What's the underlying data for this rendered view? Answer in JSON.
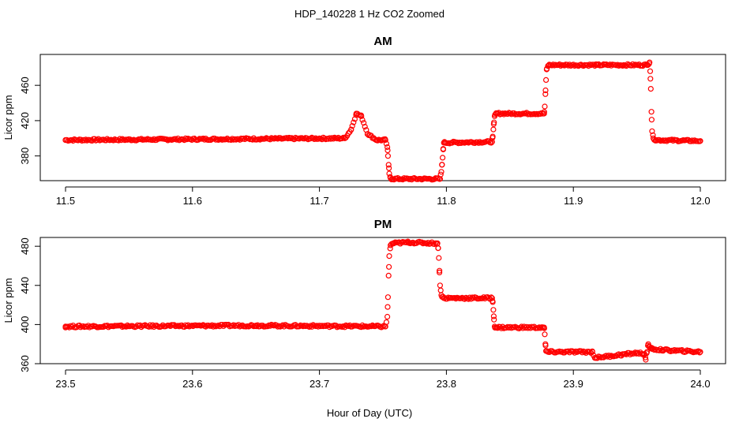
{
  "figure": {
    "title": "HDP_140228  1 Hz CO2 Zoomed",
    "xlabel": "Hour of Day (UTC)",
    "point_color": "#ff0000",
    "marker": "open-circle"
  },
  "chart_data": [
    {
      "type": "scatter",
      "title": "AM",
      "xlabel": "",
      "ylabel": "Licor ppm",
      "xlim": [
        11.5,
        12.0
      ],
      "ylim": [
        352,
        495
      ],
      "xticks": [
        "11.5",
        "11.6",
        "11.7",
        "11.8",
        "11.9",
        "12.0"
      ],
      "xtick_values": [
        11.5,
        11.6,
        11.7,
        11.8,
        11.9,
        12.0
      ],
      "yticks": [
        "380",
        "420",
        "460"
      ],
      "ytick_values": [
        380,
        420,
        460
      ],
      "grid": false,
      "series": [
        {
          "x": [
            11.5,
            11.72,
            11.725,
            11.729,
            11.733,
            11.738,
            11.745,
            11.752,
            11.7535,
            11.754,
            11.7545,
            11.755,
            11.756,
            11.757,
            11.795,
            11.796,
            11.7965,
            11.797,
            11.7975,
            11.798,
            11.799,
            11.836,
            11.8365,
            11.837,
            11.8375,
            11.838,
            11.839,
            11.877,
            11.8775,
            11.878,
            11.8785,
            11.879,
            11.88,
            11.881,
            11.918,
            11.919,
            11.958,
            11.96,
            11.9605,
            11.961,
            11.9615,
            11.962,
            11.963,
            11.965,
            12.0
          ],
          "y": [
            398,
            400,
            410,
            428,
            425,
            405,
            398,
            398,
            390,
            380,
            370,
            360,
            355,
            354,
            354,
            362,
            370,
            378,
            388,
            395,
            395,
            396,
            402,
            410,
            418,
            425,
            428,
            428,
            436,
            450,
            466,
            478,
            482,
            483,
            483,
            483,
            483,
            486,
            476,
            456,
            430,
            408,
            400,
            398,
            397
          ]
        }
      ]
    },
    {
      "type": "scatter",
      "title": "PM",
      "xlabel": "",
      "ylabel": "Licor ppm",
      "xlim": [
        23.5,
        24.0
      ],
      "ylim": [
        360,
        489
      ],
      "xticks": [
        "23.5",
        "23.6",
        "23.7",
        "23.8",
        "23.9",
        "24.0"
      ],
      "xtick_values": [
        23.5,
        23.6,
        23.7,
        23.8,
        23.9,
        24.0
      ],
      "yticks": [
        "360",
        "400",
        "440",
        "480"
      ],
      "ytick_values": [
        360,
        400,
        440,
        480
      ],
      "grid": false,
      "series": [
        {
          "x": [
            23.5,
            23.65,
            23.752,
            23.7535,
            23.754,
            23.7545,
            23.755,
            23.756,
            23.758,
            23.77,
            23.793,
            23.7935,
            23.794,
            23.7945,
            23.795,
            23.796,
            23.798,
            23.836,
            23.8365,
            23.837,
            23.8375,
            23.838,
            23.84,
            23.877,
            23.8775,
            23.878,
            23.8785,
            23.88,
            23.915,
            23.917,
            23.95,
            23.956,
            23.957,
            23.958,
            23.959,
            23.96,
            23.962,
            23.97,
            24.0
          ],
          "y": [
            398,
            399,
            398,
            408,
            428,
            450,
            470,
            481,
            483,
            484,
            483,
            478,
            468,
            455,
            440,
            430,
            427,
            427,
            423,
            415,
            405,
            398,
            397,
            397,
            390,
            380,
            373,
            372,
            372,
            366,
            371,
            370,
            364,
            372,
            380,
            377,
            375,
            374,
            372
          ]
        }
      ]
    }
  ]
}
